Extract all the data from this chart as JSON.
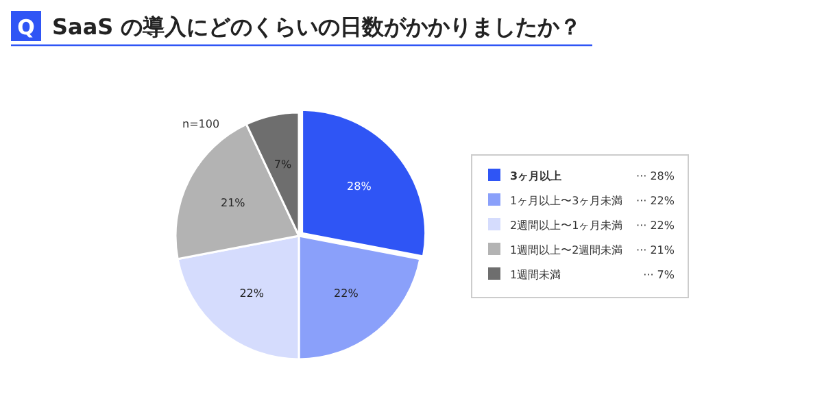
{
  "chart_data": {
    "type": "pie",
    "title": "SaaS の導入にどのくらいの日数がかかりましたか？",
    "categories": [
      "3ヶ月以上",
      "1ヶ月以上〜3ヶ月未満",
      "2週間以上〜1ヶ月未満",
      "1週間以上〜2週間未満",
      "1週間未満"
    ],
    "values": [
      28,
      22,
      22,
      21,
      7
    ],
    "colors": [
      "#2f55f5",
      "#8aa0fa",
      "#d5dcfd",
      "#b3b3b3",
      "#6e6e6e"
    ],
    "value_labels": [
      "28%",
      "22%",
      "22%",
      "21%",
      "7%"
    ],
    "legend": "right",
    "annotations": [
      "Q",
      "n=100",
      "··· 28%",
      "··· 22%",
      "··· 22%",
      "··· 21%",
      "··· 7%"
    ]
  }
}
